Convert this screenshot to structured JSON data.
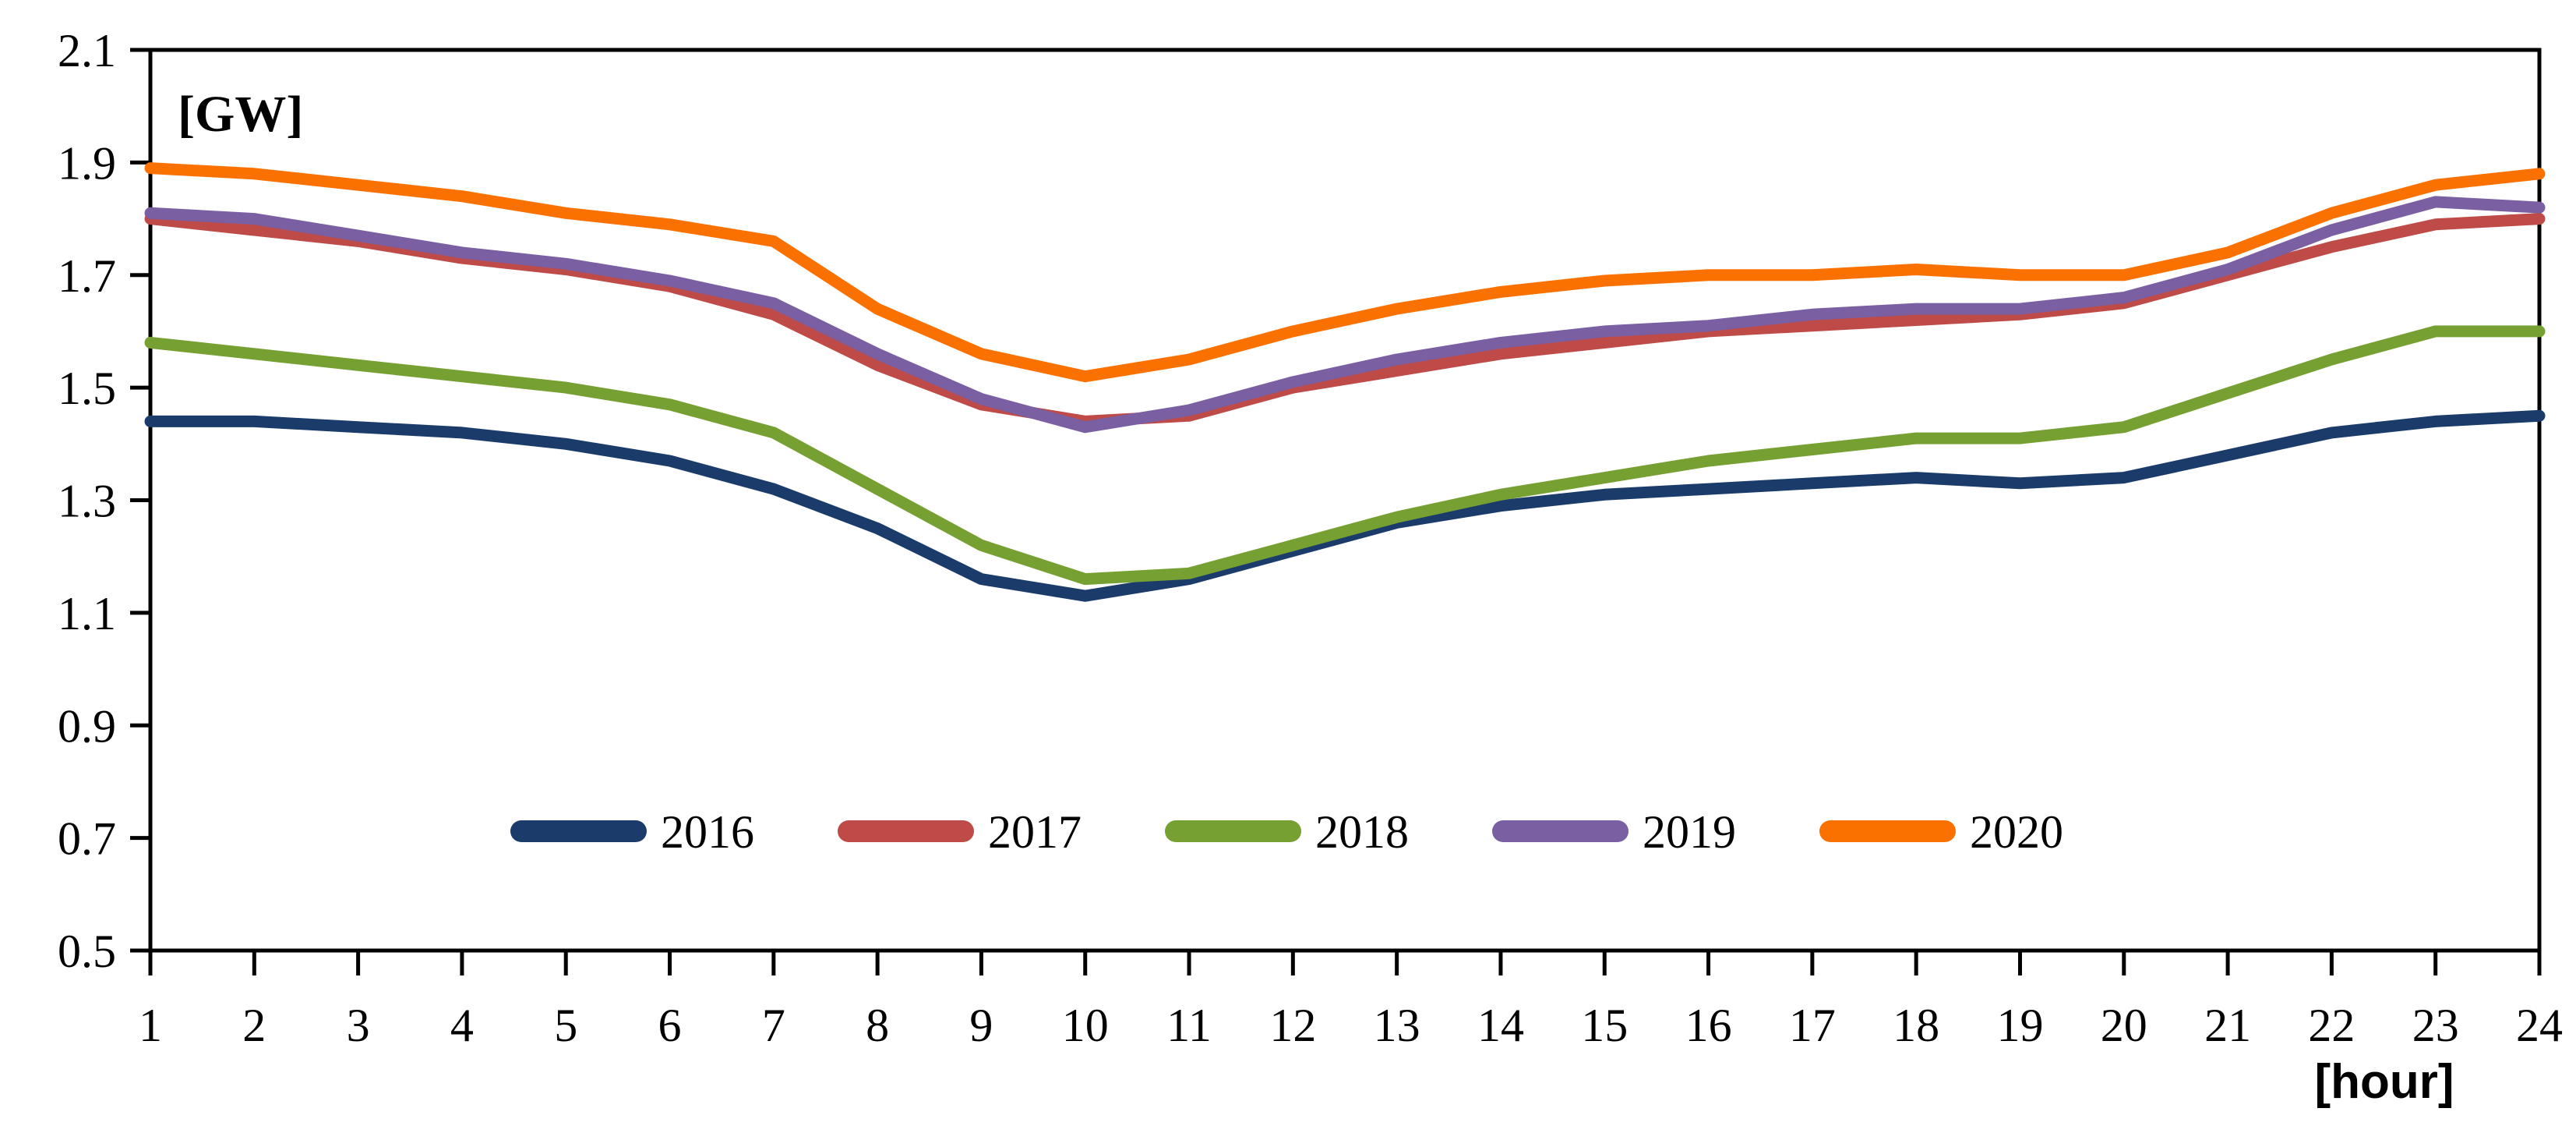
{
  "page": {
    "background": "#ffffff"
  },
  "chart_data": {
    "type": "line",
    "title": "",
    "xlabel": "[hour]",
    "ylabel": "[GW]",
    "x": [
      1,
      2,
      3,
      4,
      5,
      6,
      7,
      8,
      9,
      10,
      11,
      12,
      13,
      14,
      15,
      16,
      17,
      18,
      19,
      20,
      21,
      22,
      23,
      24
    ],
    "y_tick_labels": [
      "2.1",
      "1.9",
      "1.7",
      "1.5",
      "1.3",
      "1.1",
      "0.9",
      "0.7",
      "0.5"
    ],
    "ylim": [
      0.5,
      2.1
    ],
    "grid": "off",
    "axis_color": "#000000",
    "legend_position": "inside-bottom-center",
    "series": [
      {
        "name": "2016",
        "color": "#1B3C6B",
        "values": [
          1.44,
          1.44,
          1.43,
          1.42,
          1.4,
          1.37,
          1.32,
          1.25,
          1.16,
          1.13,
          1.16,
          1.21,
          1.26,
          1.29,
          1.31,
          1.32,
          1.33,
          1.34,
          1.33,
          1.34,
          1.38,
          1.42,
          1.44,
          1.45
        ]
      },
      {
        "name": "2017",
        "color": "#BE4B48",
        "values": [
          1.8,
          1.78,
          1.76,
          1.73,
          1.71,
          1.68,
          1.63,
          1.54,
          1.47,
          1.44,
          1.45,
          1.5,
          1.53,
          1.56,
          1.58,
          1.6,
          1.61,
          1.62,
          1.63,
          1.65,
          1.7,
          1.75,
          1.79,
          1.8
        ]
      },
      {
        "name": "2018",
        "color": "#76A032",
        "values": [
          1.58,
          1.56,
          1.54,
          1.52,
          1.5,
          1.47,
          1.42,
          1.32,
          1.22,
          1.16,
          1.17,
          1.22,
          1.27,
          1.31,
          1.34,
          1.37,
          1.39,
          1.41,
          1.41,
          1.43,
          1.49,
          1.55,
          1.6,
          1.6
        ]
      },
      {
        "name": "2019",
        "color": "#7A5FA2",
        "values": [
          1.81,
          1.8,
          1.77,
          1.74,
          1.72,
          1.69,
          1.65,
          1.56,
          1.48,
          1.43,
          1.46,
          1.51,
          1.55,
          1.58,
          1.6,
          1.61,
          1.63,
          1.64,
          1.64,
          1.66,
          1.71,
          1.78,
          1.83,
          1.82
        ]
      },
      {
        "name": "2020",
        "color": "#FB7100",
        "values": [
          1.89,
          1.88,
          1.86,
          1.84,
          1.81,
          1.79,
          1.76,
          1.64,
          1.56,
          1.52,
          1.55,
          1.6,
          1.64,
          1.67,
          1.69,
          1.7,
          1.7,
          1.71,
          1.7,
          1.7,
          1.74,
          1.81,
          1.86,
          1.88
        ]
      }
    ]
  }
}
